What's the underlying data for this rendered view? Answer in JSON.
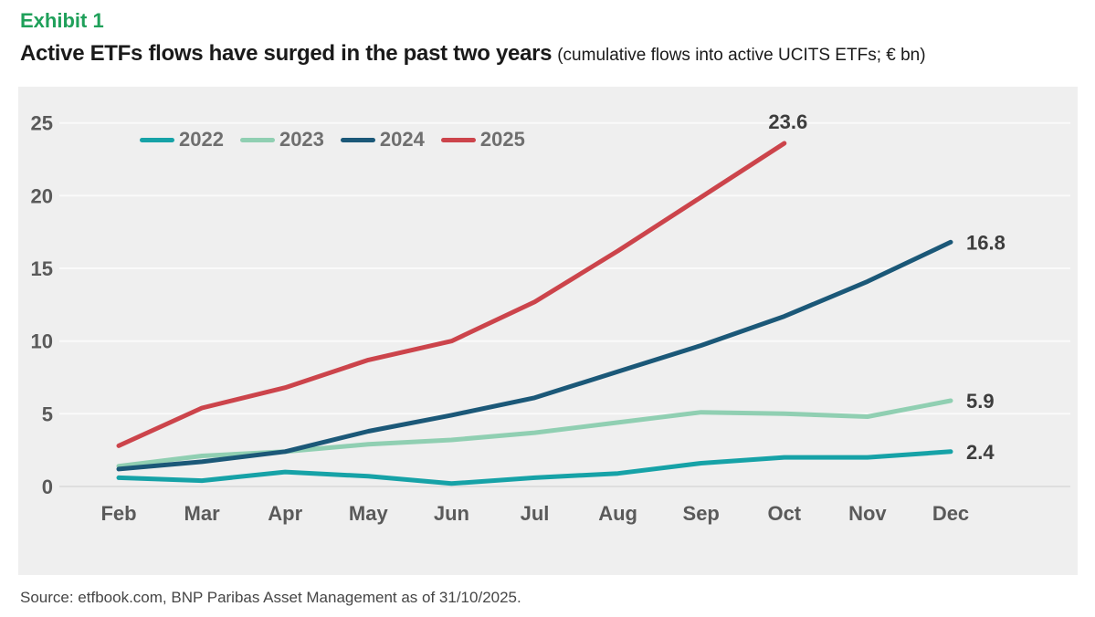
{
  "header": {
    "exhibit_label": "Exhibit 1",
    "title": "Active ETFs flows have surged in the past two years",
    "subtitle": "(cumulative flows into active UCITS ETFs; € bn)"
  },
  "chart_data": {
    "type": "line",
    "title": "Active ETFs flows have surged in the past two years",
    "subtitle": "(cumulative flows into active UCITS ETFs; € bn)",
    "unit": "€ bn",
    "categories": [
      "Feb",
      "Mar",
      "Apr",
      "May",
      "Jun",
      "Jul",
      "Aug",
      "Sep",
      "Oct",
      "Nov",
      "Dec"
    ],
    "yticks": [
      0,
      5,
      10,
      15,
      20,
      25
    ],
    "ylim": [
      0,
      25
    ],
    "grid": "horizontal",
    "legend_position": "top-left",
    "series": [
      {
        "name": "2022",
        "color": "#16a2a7",
        "values": [
          0.6,
          0.4,
          1.0,
          0.7,
          0.2,
          0.6,
          0.9,
          1.6,
          2.0,
          2.0,
          2.4
        ],
        "end_label": "2.4",
        "label_position": "right"
      },
      {
        "name": "2023",
        "color": "#90cfb2",
        "values": [
          1.4,
          2.1,
          2.4,
          2.9,
          3.2,
          3.7,
          4.4,
          5.1,
          5.0,
          4.8,
          5.9
        ],
        "end_label": "5.9",
        "label_position": "right"
      },
      {
        "name": "2024",
        "color": "#1b5878",
        "values": [
          1.2,
          1.7,
          2.4,
          3.8,
          4.9,
          6.1,
          7.9,
          9.7,
          11.7,
          14.1,
          16.8
        ],
        "end_label": "16.8",
        "label_position": "right"
      },
      {
        "name": "2025",
        "color": "#cc444b",
        "values": [
          2.8,
          5.4,
          6.8,
          8.7,
          10.0,
          12.7,
          16.2,
          19.9,
          23.6,
          null,
          null
        ],
        "end_label": "23.6",
        "label_position": "above"
      }
    ]
  },
  "footer": {
    "source": "Source: etfbook.com, BNP Paribas Asset Management as of 31/10/2025."
  },
  "colors": {
    "accent_green": "#1fa05a",
    "plot_background": "#efefef",
    "grid_line": "#fafafa",
    "zero_line": "#dedede",
    "axis_text": "#5a5a5a",
    "legend_text": "#6f6f6f",
    "data_label": "#3d3d3d"
  }
}
